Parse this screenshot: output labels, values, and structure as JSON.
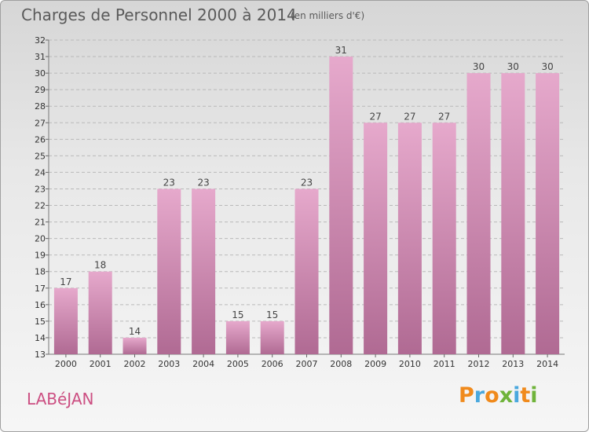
{
  "header": {
    "title": "Charges de Personnel 2000 à 2014",
    "subtitle": "(en milliers d'€)"
  },
  "footer": {
    "commune": "LABéJAN",
    "logo": "Proxiti"
  },
  "colors": {
    "bar_top": "#e6a9cc",
    "bar_bottom": "#b06a93",
    "grid": "#b9b9b9",
    "commune_text": "#cc4f82",
    "logo_letters": [
      "#f08a1c",
      "#4aa8de",
      "#f08a1c",
      "#6fb33a",
      "#4aa8de",
      "#f08a1c",
      "#6fb33a"
    ]
  },
  "chart_data": {
    "type": "bar",
    "title": "Charges de Personnel 2000 à 2014",
    "subtitle": "(en milliers d'€)",
    "categories": [
      "2000",
      "2001",
      "2002",
      "2003",
      "2004",
      "2005",
      "2006",
      "2007",
      "2008",
      "2009",
      "2010",
      "2011",
      "2012",
      "2013",
      "2014"
    ],
    "values": [
      17,
      18,
      14,
      23,
      23,
      15,
      15,
      23,
      31,
      27,
      27,
      27,
      30,
      30,
      30
    ],
    "ylim": [
      13,
      32
    ],
    "yticks": [
      13,
      14,
      15,
      16,
      17,
      18,
      19,
      20,
      21,
      22,
      23,
      24,
      25,
      26,
      27,
      28,
      29,
      30,
      31,
      32
    ],
    "grid": "horizontal dashed",
    "data_labels": true
  }
}
